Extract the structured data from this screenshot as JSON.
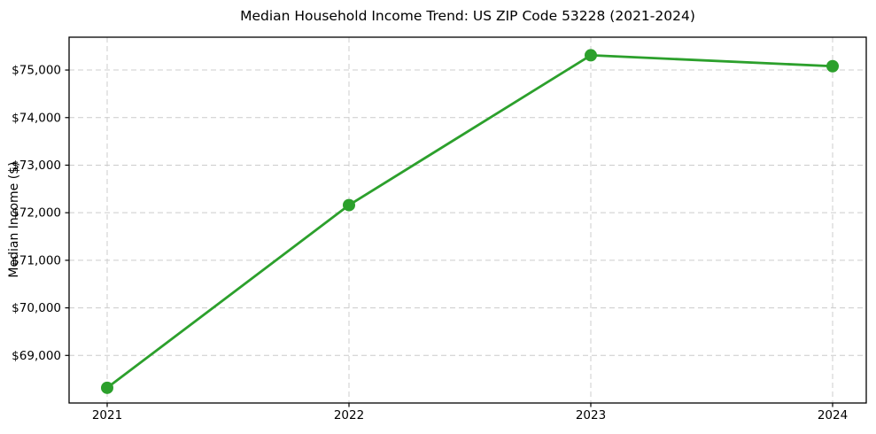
{
  "chart_data": {
    "type": "line",
    "title": "Median Household Income Trend: US ZIP Code 53228 (2021-2024)",
    "xlabel": "",
    "ylabel": "Median Income ($)",
    "categories": [
      "2021",
      "2022",
      "2023",
      "2024"
    ],
    "series": [
      {
        "name": "Median Household Income",
        "values": [
          68320,
          72160,
          75310,
          75080
        ]
      }
    ],
    "ytick_values": [
      69000,
      70000,
      71000,
      72000,
      73000,
      74000,
      75000
    ],
    "ytick_labels": [
      "$69,000",
      "$70,000",
      "$71,000",
      "$72,000",
      "$73,000",
      "$74,000",
      "$75,000"
    ],
    "ylim": [
      68000,
      75690
    ],
    "grid": true,
    "grid_style": "dashed",
    "legend_position": "none",
    "colors": {
      "line": "#2ca02c",
      "marker": "#2ca02c",
      "grid": "#cccccc",
      "axes_frame": "#000000",
      "background": "#ffffff"
    }
  }
}
